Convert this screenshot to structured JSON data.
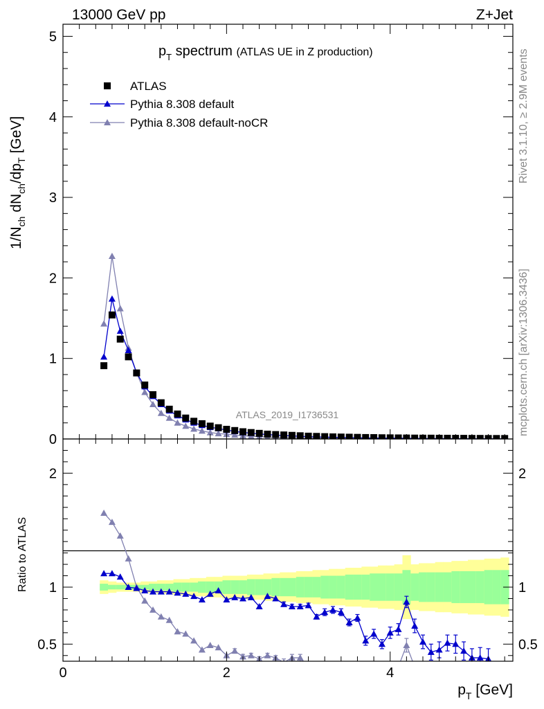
{
  "header": {
    "left": "13000 GeV pp",
    "right": "Z+Jet"
  },
  "side_text": {
    "top": "Rivet 3.1.10, ≥ 2.9M events",
    "bottom": "mcplots.cern.ch [arXiv:1306.3436]"
  },
  "watermark": "ATLAS_2019_I1736531",
  "colors": {
    "atlas": "#000000",
    "default": "#0000cc",
    "nocr": "#8080b0",
    "band_yellow": "#ffff99",
    "band_green": "#99ff99"
  },
  "chart_data": [
    {
      "type": "scatter",
      "title": "p_T spectrum (ATLAS UE in Z production)",
      "title_main": "p",
      "title_sub": "T",
      "title_word": "spectrum",
      "title_paren": "(ATLAS UE in Z production)",
      "ylabel": "1/N_ch dN_ch/dp_T [GeV]",
      "xlim": [
        0,
        5.5
      ],
      "ylim": [
        0,
        5.15
      ],
      "yticks": [
        "0",
        "1",
        "2",
        "3",
        "4",
        "5"
      ],
      "legend_position": "top-left",
      "series": [
        {
          "name": "ATLAS",
          "marker": "square",
          "x": [
            0.5,
            0.6,
            0.7,
            0.8,
            0.9,
            1.0,
            1.1,
            1.2,
            1.3,
            1.4,
            1.5,
            1.6,
            1.7,
            1.8,
            1.9,
            2.0,
            2.1,
            2.2,
            2.3,
            2.4,
            2.5,
            2.6,
            2.7,
            2.8,
            2.9,
            3.0,
            3.1,
            3.2,
            3.3,
            3.4,
            3.5,
            3.6,
            3.7,
            3.8,
            3.9,
            4.0,
            4.1,
            4.2,
            4.3,
            4.4,
            4.5,
            4.6,
            4.7,
            4.8,
            4.9,
            5.0,
            5.1,
            5.2,
            5.3,
            5.4
          ],
          "y": [
            0.91,
            1.54,
            1.24,
            1.02,
            0.82,
            0.67,
            0.55,
            0.45,
            0.37,
            0.31,
            0.26,
            0.22,
            0.19,
            0.16,
            0.14,
            0.12,
            0.105,
            0.09,
            0.08,
            0.07,
            0.06,
            0.055,
            0.05,
            0.045,
            0.04,
            0.035,
            0.032,
            0.029,
            0.026,
            0.024,
            0.022,
            0.02,
            0.018,
            0.017,
            0.015,
            0.014,
            0.013,
            0.012,
            0.011,
            0.01,
            0.01,
            0.009,
            0.009,
            0.008,
            0.008,
            0.007,
            0.007,
            0.006,
            0.006,
            0.006
          ]
        },
        {
          "name": "Pythia 8.308 default",
          "marker": "triangle",
          "x": [
            0.5,
            0.6,
            0.7,
            0.8,
            0.9,
            1.0,
            1.1,
            1.2,
            1.3,
            1.4,
            1.5,
            1.6,
            1.7,
            1.8,
            1.9,
            2.0,
            2.1,
            2.2,
            2.3,
            2.4,
            2.5,
            2.6,
            2.7,
            2.8,
            2.9,
            3.0,
            3.1,
            3.2,
            3.3,
            3.4,
            3.5,
            3.6,
            3.7,
            3.8,
            3.9,
            4.0,
            4.1,
            4.2,
            4.3,
            4.4,
            4.5,
            4.6,
            4.7,
            4.8,
            4.9,
            5.0,
            5.1,
            5.2,
            5.3,
            5.4
          ],
          "y": [
            1.02,
            1.74,
            1.34,
            1.1,
            0.82,
            0.65,
            0.53,
            0.43,
            0.35,
            0.29,
            0.24,
            0.2,
            0.17,
            0.145,
            0.13,
            0.11,
            0.095,
            0.08,
            0.072,
            0.062,
            0.055,
            0.048,
            0.042,
            0.038,
            0.033,
            0.029,
            0.026,
            0.023,
            0.021,
            0.019,
            0.017,
            0.015,
            0.013,
            0.012,
            0.011,
            0.01,
            0.009,
            0.008,
            0.007,
            0.006,
            0.005,
            0.005,
            0.004,
            0.004,
            0.004,
            0.003,
            0.003,
            0.003,
            0.002,
            0.002
          ]
        },
        {
          "name": "Pythia 8.308 default-noCR",
          "marker": "triangle",
          "x": [
            0.5,
            0.6,
            0.7,
            0.8,
            0.9,
            1.0,
            1.1,
            1.2,
            1.3,
            1.4,
            1.5,
            1.6,
            1.7,
            1.8,
            1.9,
            2.0,
            2.1,
            2.2,
            2.3,
            2.4,
            2.5,
            2.6,
            2.7,
            2.8,
            2.9,
            3.0,
            3.1,
            3.2,
            3.3,
            3.4,
            3.5,
            3.6,
            3.7,
            3.8,
            3.9,
            4.0,
            4.1,
            4.2,
            4.3,
            4.4,
            4.5,
            4.6,
            4.7,
            4.8,
            4.9,
            5.0,
            5.1,
            5.2,
            5.3,
            5.4
          ],
          "y": [
            1.43,
            2.27,
            1.62,
            1.13,
            0.82,
            0.58,
            0.43,
            0.32,
            0.26,
            0.2,
            0.16,
            0.125,
            0.1,
            0.08,
            0.068,
            0.058,
            0.05,
            0.04,
            0.034,
            0.028,
            0.024,
            0.02,
            0.017,
            0.015,
            0.013,
            0.011,
            0.01,
            0.009,
            0.008,
            0.007,
            0.006,
            0.005,
            0.005,
            0.004,
            0.004,
            0.003,
            0.003,
            0.003,
            0.002,
            0.002,
            0.002,
            0.002,
            0.002,
            0.001,
            0.001,
            0.001,
            0.001,
            0.001,
            0.001,
            0.001
          ]
        }
      ]
    },
    {
      "type": "scatter",
      "ylabel": "Ratio to ATLAS",
      "xlabel": "p_T [GeV]",
      "xlabel_main": "p",
      "xlabel_sub": "T",
      "xlabel_unit": "[GeV]",
      "xlim": [
        0,
        5.5
      ],
      "ylim": [
        0.35,
        2.3
      ],
      "xticks": [
        "0",
        "2",
        "4"
      ],
      "yticks": [
        "0.5",
        "1",
        "2"
      ],
      "bands": {
        "x_edges": [
          0.45,
          0.55,
          0.65,
          0.75,
          0.85,
          0.95,
          1.05,
          1.15,
          1.25,
          1.35,
          1.45,
          1.55,
          1.65,
          1.75,
          1.85,
          1.95,
          2.05,
          2.15,
          2.25,
          2.35,
          2.45,
          2.55,
          2.65,
          2.75,
          2.85,
          2.95,
          3.05,
          3.15,
          3.25,
          3.35,
          3.45,
          3.55,
          3.65,
          3.75,
          3.85,
          3.95,
          4.05,
          4.15,
          4.25,
          4.35,
          4.45,
          4.55,
          4.65,
          4.75,
          4.85,
          4.95,
          5.05,
          5.15,
          5.25,
          5.35,
          5.45
        ],
        "yellow_half": [
          0.06,
          0.05,
          0.04,
          0.04,
          0.04,
          0.05,
          0.05,
          0.06,
          0.06,
          0.07,
          0.07,
          0.08,
          0.08,
          0.09,
          0.09,
          0.1,
          0.1,
          0.1,
          0.11,
          0.11,
          0.12,
          0.12,
          0.13,
          0.13,
          0.14,
          0.14,
          0.15,
          0.15,
          0.16,
          0.16,
          0.17,
          0.17,
          0.18,
          0.18,
          0.19,
          0.19,
          0.2,
          0.28,
          0.2,
          0.21,
          0.21,
          0.22,
          0.22,
          0.23,
          0.23,
          0.24,
          0.24,
          0.25,
          0.25,
          0.26
        ],
        "green_half": [
          0.03,
          0.02,
          0.02,
          0.02,
          0.02,
          0.02,
          0.03,
          0.03,
          0.03,
          0.04,
          0.04,
          0.04,
          0.05,
          0.05,
          0.05,
          0.06,
          0.06,
          0.06,
          0.07,
          0.07,
          0.07,
          0.08,
          0.08,
          0.08,
          0.09,
          0.09,
          0.09,
          0.1,
          0.1,
          0.1,
          0.11,
          0.11,
          0.11,
          0.12,
          0.12,
          0.12,
          0.12,
          0.15,
          0.12,
          0.13,
          0.13,
          0.13,
          0.13,
          0.14,
          0.14,
          0.14,
          0.14,
          0.15,
          0.15,
          0.15
        ]
      },
      "series": [
        {
          "name": "Pythia 8.308 default",
          "x": [
            0.5,
            0.6,
            0.7,
            0.8,
            0.9,
            1.0,
            1.1,
            1.2,
            1.3,
            1.4,
            1.5,
            1.6,
            1.7,
            1.8,
            1.9,
            2.0,
            2.1,
            2.2,
            2.3,
            2.4,
            2.5,
            2.6,
            2.7,
            2.8,
            2.9,
            3.0,
            3.1,
            3.2,
            3.3,
            3.4,
            3.5,
            3.6,
            3.7,
            3.8,
            3.9,
            4.0,
            4.1,
            4.2,
            4.3,
            4.4,
            4.5,
            4.6,
            4.7,
            4.8,
            4.9,
            5.0,
            5.1,
            5.2
          ],
          "y": [
            1.12,
            1.12,
            1.09,
            1.0,
            0.99,
            0.97,
            0.96,
            0.96,
            0.96,
            0.95,
            0.94,
            0.92,
            0.89,
            0.94,
            0.97,
            0.89,
            0.91,
            0.9,
            0.91,
            0.83,
            0.92,
            0.9,
            0.85,
            0.83,
            0.83,
            0.84,
            0.74,
            0.78,
            0.8,
            0.78,
            0.69,
            0.73,
            0.53,
            0.59,
            0.5,
            0.6,
            0.63,
            0.87,
            0.66,
            0.52,
            0.43,
            0.45,
            0.51,
            0.5,
            0.44,
            0.38,
            0.38,
            0.37
          ],
          "err": [
            0.01,
            0.01,
            0.01,
            0.01,
            0.01,
            0.01,
            0.01,
            0.01,
            0.01,
            0.01,
            0.01,
            0.01,
            0.01,
            0.01,
            0.01,
            0.01,
            0.01,
            0.01,
            0.01,
            0.01,
            0.01,
            0.01,
            0.02,
            0.02,
            0.02,
            0.02,
            0.02,
            0.03,
            0.03,
            0.03,
            0.03,
            0.03,
            0.04,
            0.04,
            0.04,
            0.05,
            0.05,
            0.05,
            0.06,
            0.06,
            0.07,
            0.07,
            0.07,
            0.08,
            0.08,
            0.08,
            0.09,
            0.09
          ]
        },
        {
          "name": "Pythia 8.308 default-noCR",
          "x": [
            0.5,
            0.6,
            0.7,
            0.8,
            0.9,
            1.0,
            1.1,
            1.2,
            1.3,
            1.4,
            1.5,
            1.6,
            1.7,
            1.8,
            1.9,
            2.0,
            2.1,
            2.2,
            2.3,
            2.4,
            2.5,
            2.6,
            2.7,
            2.8,
            2.9,
            3.0,
            3.1,
            3.2,
            3.3,
            3.4,
            3.5,
            3.6,
            3.7,
            3.8,
            3.9,
            4.0,
            4.1,
            4.2,
            4.3,
            4.4,
            4.5,
            4.6,
            4.7,
            4.8,
            4.9,
            5.0,
            5.1,
            5.2,
            5.3,
            5.4
          ],
          "y": [
            1.65,
            1.57,
            1.45,
            1.25,
            1.0,
            0.88,
            0.8,
            0.74,
            0.71,
            0.61,
            0.59,
            0.53,
            0.45,
            0.49,
            0.47,
            0.4,
            0.44,
            0.39,
            0.4,
            0.37,
            0.4,
            0.38,
            0.34,
            0.38,
            0.38,
            0.3,
            0.3,
            0.3,
            0.3,
            0.3,
            0.3,
            0.3,
            0.3,
            0.3,
            0.3,
            0.3,
            0.3,
            0.49,
            0.3,
            0.3,
            0.3,
            0.3,
            0.3,
            0.3,
            0.3,
            0.3,
            0.3,
            0.3,
            0.3,
            0.3
          ],
          "err": [
            0.01,
            0.01,
            0.01,
            0.01,
            0.01,
            0.01,
            0.01,
            0.01,
            0.01,
            0.01,
            0.01,
            0.01,
            0.01,
            0.01,
            0.01,
            0.01,
            0.02,
            0.02,
            0.02,
            0.02,
            0.02,
            0.02,
            0.03,
            0.03,
            0.03,
            0.03,
            0.03,
            0.03,
            0.03,
            0.03,
            0.03,
            0.03,
            0.03,
            0.03,
            0.03,
            0.03,
            0.03,
            0.06,
            0.03,
            0.03,
            0.03,
            0.03,
            0.03,
            0.03,
            0.03,
            0.03,
            0.03,
            0.03,
            0.03,
            0.03
          ]
        }
      ]
    }
  ]
}
